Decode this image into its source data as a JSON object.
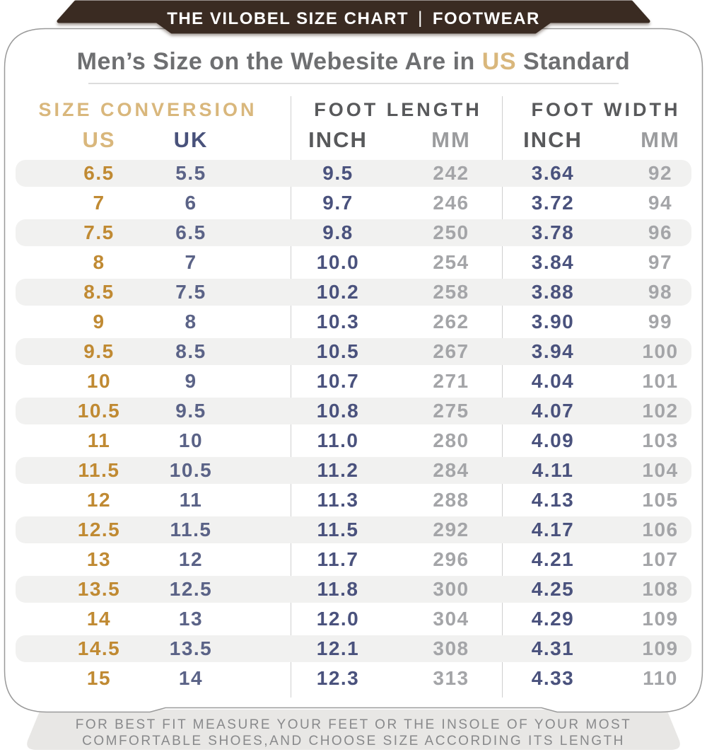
{
  "banner": {
    "title": "THE VILOBEL SIZE CHART",
    "separator": "|",
    "subtitle": "FOOTWEAR"
  },
  "title": {
    "prefix": "Men’s Size on the Webesite Are in ",
    "highlight": "US",
    "suffix": " Standard"
  },
  "table": {
    "groups": [
      {
        "label": "SIZE CONVERSION"
      },
      {
        "label": "FOOT LENGTH"
      },
      {
        "label": "FOOT WIDTH"
      }
    ],
    "columns": [
      "US",
      "UK",
      "INCH",
      "MM",
      "INCH",
      "MM"
    ],
    "col_keys": [
      "us",
      "uk",
      "length-inch",
      "length-mm",
      "width-inch",
      "width-mm"
    ],
    "rows": [
      [
        "6.5",
        "5.5",
        "9.5",
        "242",
        "3.64",
        "92"
      ],
      [
        "7",
        "6",
        "9.7",
        "246",
        "3.72",
        "94"
      ],
      [
        "7.5",
        "6.5",
        "9.8",
        "250",
        "3.78",
        "96"
      ],
      [
        "8",
        "7",
        "10.0",
        "254",
        "3.84",
        "97"
      ],
      [
        "8.5",
        "7.5",
        "10.2",
        "258",
        "3.88",
        "98"
      ],
      [
        "9",
        "8",
        "10.3",
        "262",
        "3.90",
        "99"
      ],
      [
        "9.5",
        "8.5",
        "10.5",
        "267",
        "3.94",
        "100"
      ],
      [
        "10",
        "9",
        "10.7",
        "271",
        "4.04",
        "101"
      ],
      [
        "10.5",
        "9.5",
        "10.8",
        "275",
        "4.07",
        "102"
      ],
      [
        "11",
        "10",
        "11.0",
        "280",
        "4.09",
        "103"
      ],
      [
        "11.5",
        "10.5",
        "11.2",
        "284",
        "4.11",
        "104"
      ],
      [
        "12",
        "11",
        "11.3",
        "288",
        "4.13",
        "105"
      ],
      [
        "12.5",
        "11.5",
        "11.5",
        "292",
        "4.17",
        "106"
      ],
      [
        "13",
        "12",
        "11.7",
        "296",
        "4.21",
        "107"
      ],
      [
        "13.5",
        "12.5",
        "11.8",
        "300",
        "4.25",
        "108"
      ],
      [
        "14",
        "13",
        "12.0",
        "304",
        "4.29",
        "109"
      ],
      [
        "14.5",
        "13.5",
        "12.1",
        "308",
        "4.31",
        "109"
      ],
      [
        "15",
        "14",
        "12.3",
        "313",
        "4.33",
        "110"
      ]
    ]
  },
  "footer": {
    "line1": "FOR BEST FIT MEASURE YOUR FEET OR THE INSOLE OF YOUR MOST",
    "line2": "COMFORTABLE SHOES,AND CHOOSE SIZE ACCORDING ITS LENGTH"
  },
  "colors": {
    "brown": "#3A2B22",
    "gold_light": "#D9B77C",
    "gold_dark": "#C08A33",
    "navy": "#49527B",
    "slate": "#5B6387",
    "inch_navy": "#4A527D",
    "ink_gray": "#58595B",
    "mm_gray": "#9B9C9E",
    "mm_value_gray": "#A4A5A8",
    "title_gray": "#6E6F71",
    "stripe": "#F1F1F0",
    "divider": "#CFCFCF",
    "footer_bg": "#E8E7E5",
    "footer_text": "#88898B",
    "panel_border": "#9A9A9A"
  }
}
